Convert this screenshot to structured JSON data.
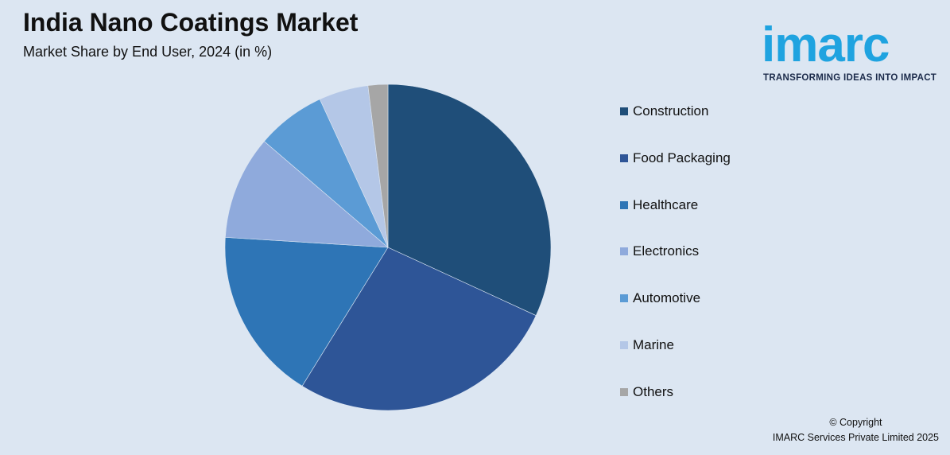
{
  "header": {
    "title": "India Nano Coatings Market",
    "subtitle": "Market Share by End User, 2024 (in %)"
  },
  "logo": {
    "word": "imarc",
    "tagline": "TRANSFORMING IDEAS INTO IMPACT",
    "color": "#1fa3e0"
  },
  "chart_data": {
    "type": "pie",
    "title": "India Nano Coatings Market",
    "subtitle": "Market Share by End User, 2024 (in %)",
    "legend_position": "right",
    "slices": [
      {
        "label": "Construction",
        "value": 32.5,
        "color": "#1f4e79"
      },
      {
        "label": "Food Packaging",
        "value": 27.5,
        "color": "#2e5597"
      },
      {
        "label": "Healthcare",
        "value": 17.5,
        "color": "#2e75b6"
      },
      {
        "label": "Electronics",
        "value": 10.5,
        "color": "#8faadc"
      },
      {
        "label": "Automotive",
        "value": 7.0,
        "color": "#5b9bd5"
      },
      {
        "label": "Marine",
        "value": 5.0,
        "color": "#b4c7e7"
      },
      {
        "label": "Others",
        "value": 2.0,
        "color": "#a6a6a6"
      }
    ]
  },
  "footer": {
    "copyright_line1": "© Copyright",
    "copyright_line2": "IMARC Services Private Limited 2025"
  }
}
